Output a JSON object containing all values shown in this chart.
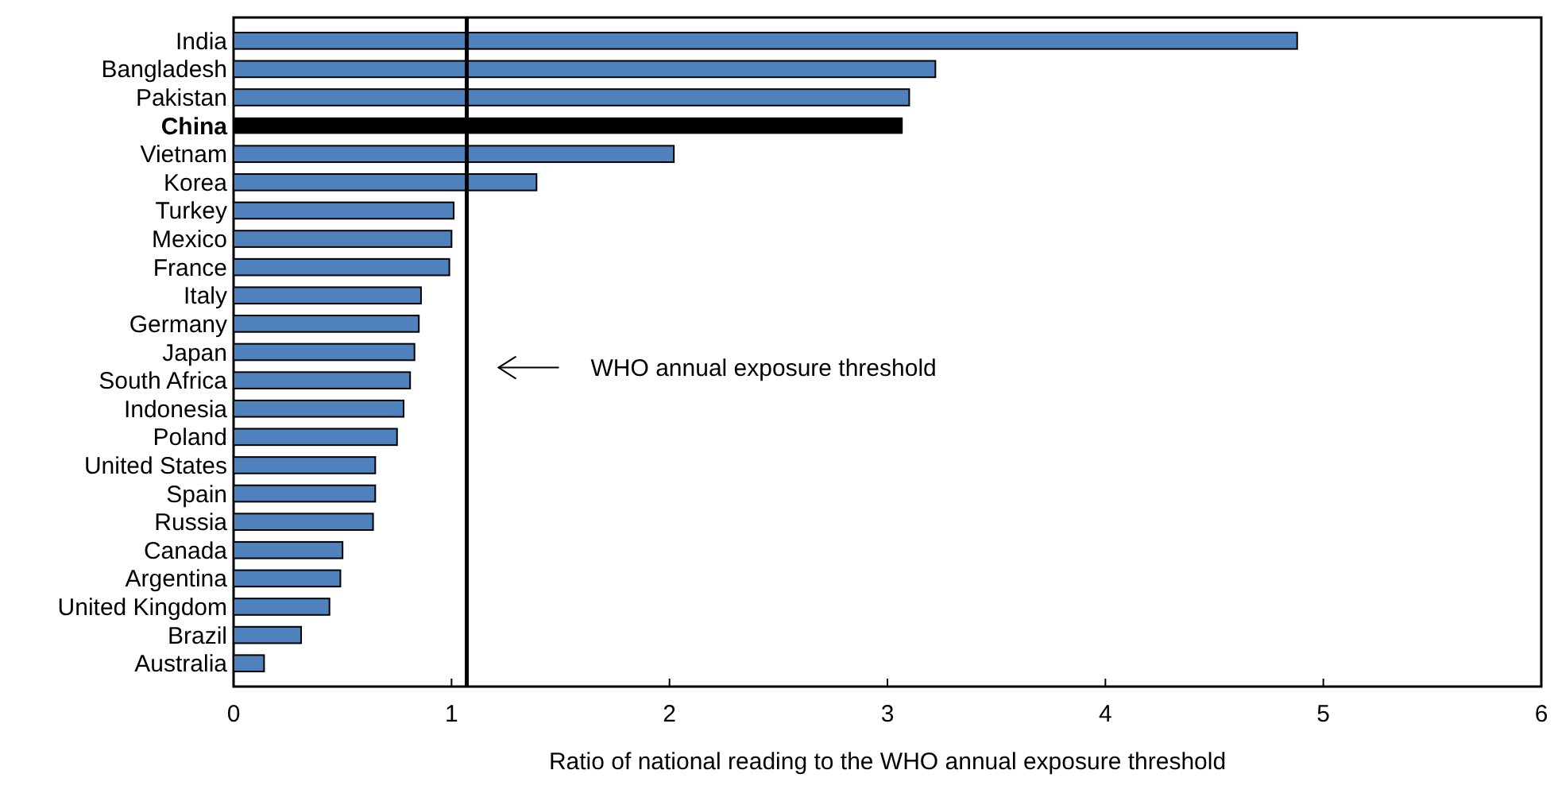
{
  "chart_data": {
    "type": "bar",
    "orientation": "horizontal",
    "xlabel": "Ratio of national reading to the WHO annual exposure threshold",
    "categories": [
      "India",
      "Bangladesh",
      "Pakistan",
      "China",
      "Vietnam",
      "Korea",
      "Turkey",
      "Mexico",
      "France",
      "Italy",
      "Germany",
      "Japan",
      "South Africa",
      "Indonesia",
      "Poland",
      "United States",
      "Spain",
      "Russia",
      "Canada",
      "Argentina",
      "United Kingdom",
      "Brazil",
      "Australia"
    ],
    "values": [
      4.88,
      3.22,
      3.1,
      3.07,
      2.02,
      1.39,
      1.01,
      1.0,
      0.99,
      0.86,
      0.85,
      0.83,
      0.81,
      0.78,
      0.75,
      0.65,
      0.65,
      0.64,
      0.5,
      0.49,
      0.44,
      0.31,
      0.14
    ],
    "colors": [
      "#4f81bd",
      "#4f81bd",
      "#4f81bd",
      "#000000",
      "#4f81bd",
      "#4f81bd",
      "#4f81bd",
      "#4f81bd",
      "#4f81bd",
      "#4f81bd",
      "#4f81bd",
      "#4f81bd",
      "#4f81bd",
      "#4f81bd",
      "#4f81bd",
      "#4f81bd",
      "#4f81bd",
      "#4f81bd",
      "#4f81bd",
      "#4f81bd",
      "#4f81bd",
      "#4f81bd",
      "#4f81bd"
    ],
    "xlim": [
      0,
      6
    ],
    "xticks": [
      0,
      1,
      2,
      3,
      4,
      5,
      6
    ],
    "grid": false,
    "ref_lines": [
      {
        "axis": "x",
        "value": 1.07,
        "label": "WHO annual exposure threshold",
        "color": "#000000"
      }
    ]
  }
}
